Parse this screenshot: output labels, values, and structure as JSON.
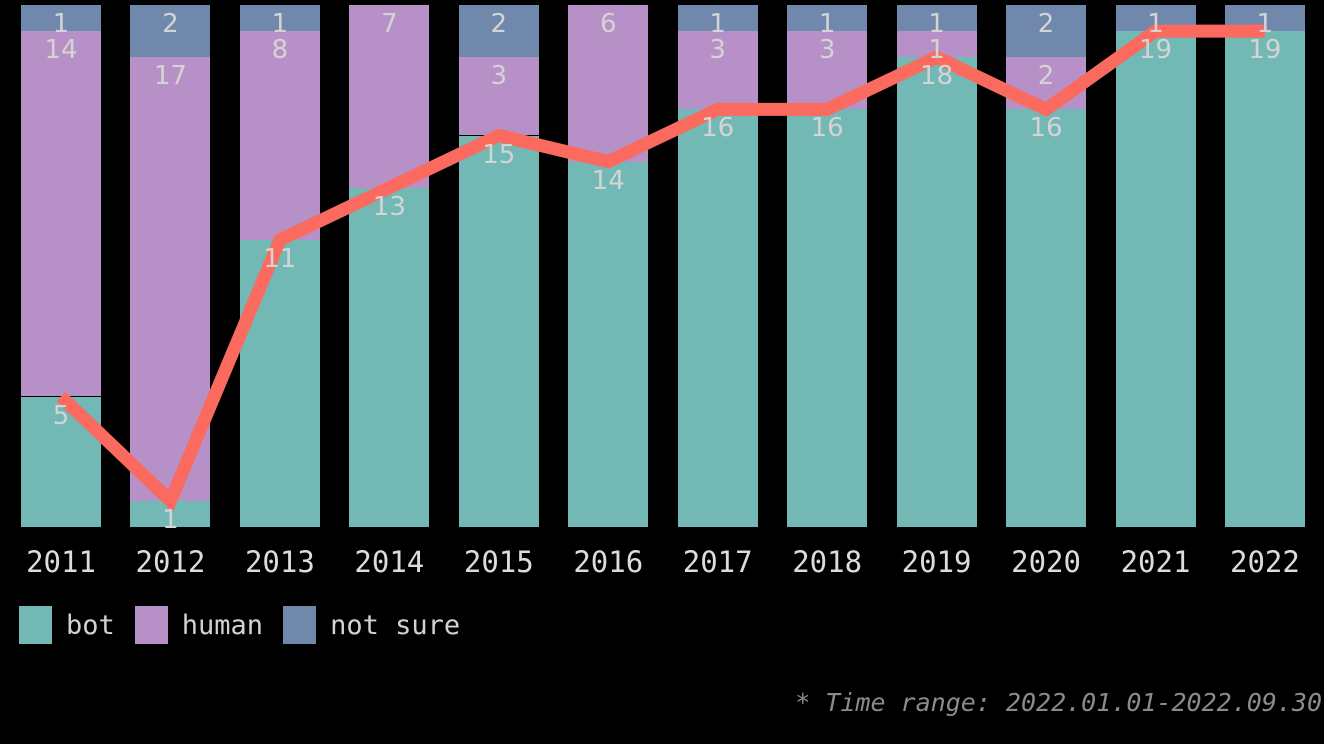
{
  "chart_data": {
    "type": "bar",
    "stacked": true,
    "title": "",
    "xlabel": "",
    "ylabel": "",
    "categories": [
      "2011",
      "2012",
      "2013",
      "2014",
      "2015",
      "2016",
      "2017",
      "2018",
      "2019",
      "2020",
      "2021",
      "2022"
    ],
    "series": [
      {
        "name": "bot",
        "color": "#72b8b4",
        "values": [
          5,
          1,
          11,
          13,
          15,
          14,
          16,
          16,
          18,
          16,
          19,
          19
        ]
      },
      {
        "name": "human",
        "color": "#b790c7",
        "values": [
          14,
          17,
          8,
          7,
          3,
          6,
          3,
          3,
          1,
          2,
          0,
          0
        ]
      },
      {
        "name": "not sure",
        "color": "#7088ab",
        "values": [
          1,
          2,
          1,
          0,
          2,
          0,
          1,
          1,
          1,
          2,
          1,
          1
        ]
      }
    ],
    "line_overlay": {
      "series": "bot",
      "color": "#fb6a5e",
      "stroke_width": 13
    },
    "ylim": [
      0,
      20
    ],
    "grid": false,
    "value_labels": true,
    "legend_position": "bottom-left",
    "legend": [
      "bot",
      "human",
      "not sure"
    ],
    "annotation": "* Time range: 2022.01.01-2022.09.30"
  },
  "colors": {
    "background": "#000000",
    "bar_value_label": "#d4d4d4",
    "axis_label": "#dcdcdc",
    "legend_label": "#d2d2d2",
    "annotation": "#8b8b8b"
  }
}
